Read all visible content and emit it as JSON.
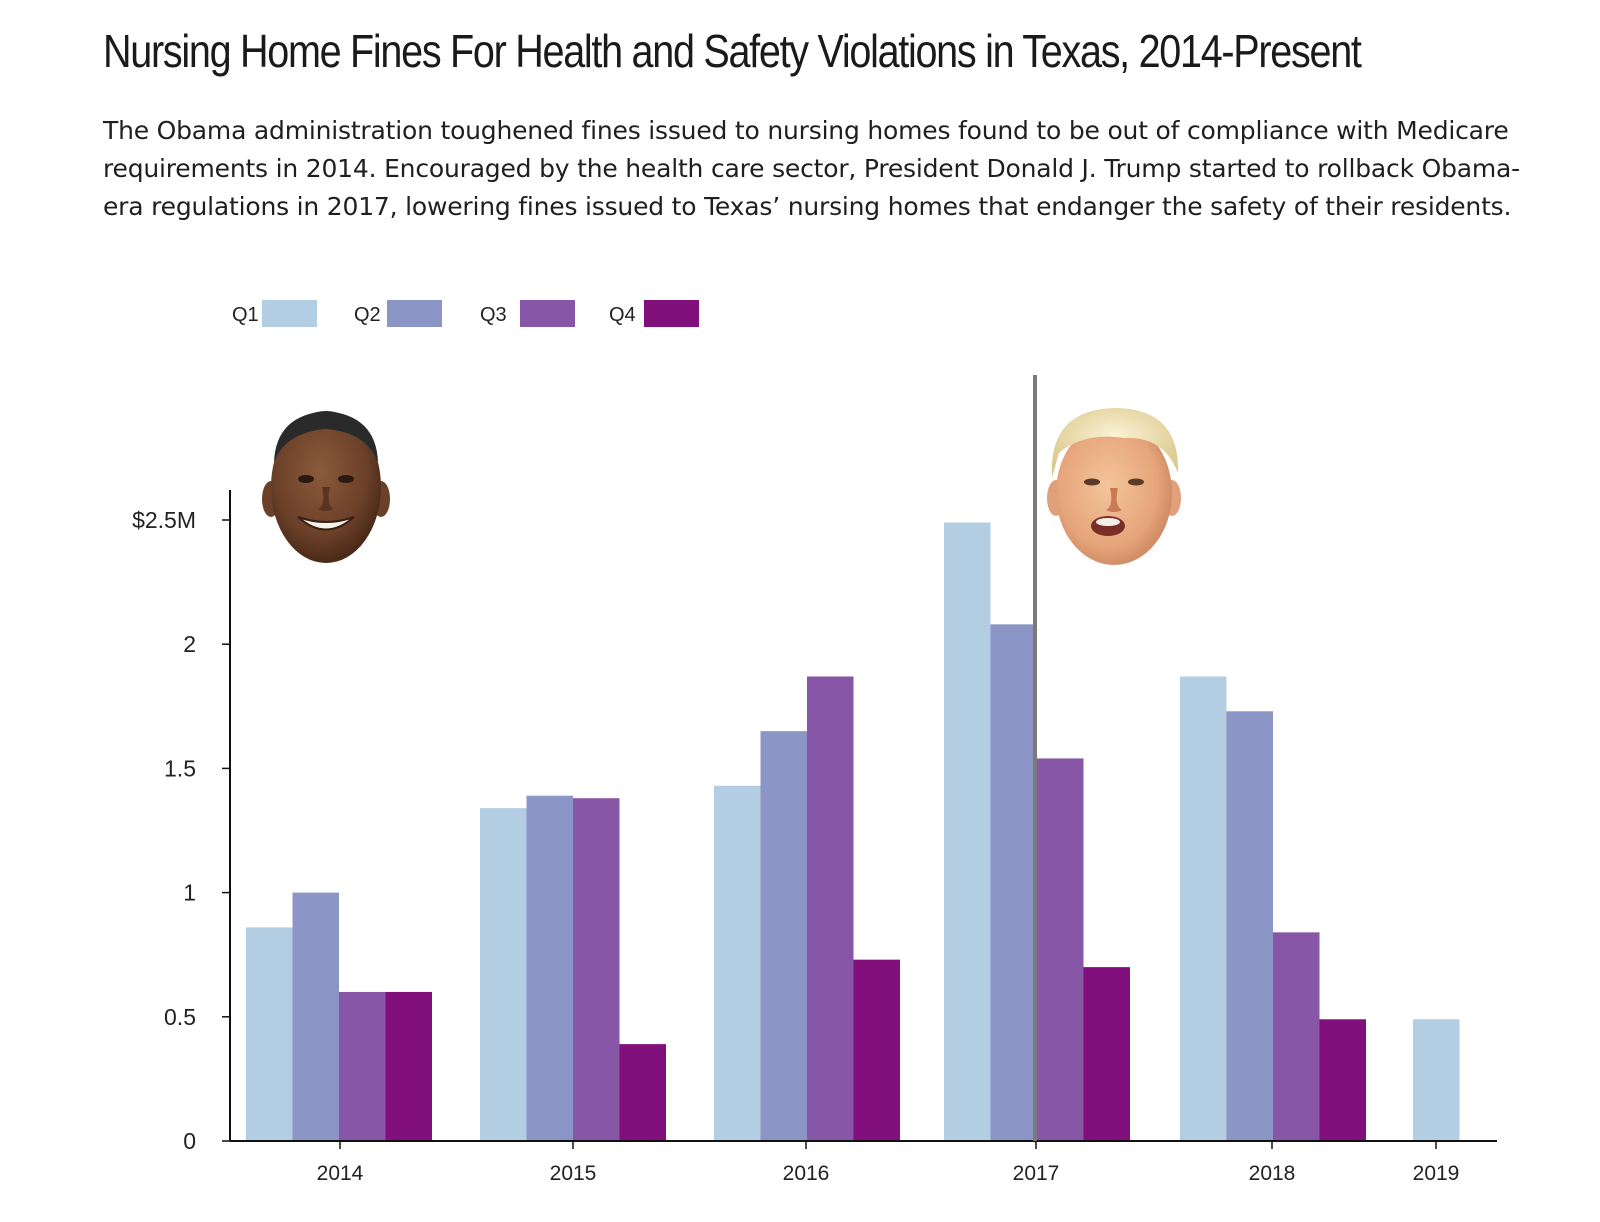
{
  "title": "Nursing Home Fines For Health and Safety Violations in Texas, 2014-Present",
  "subtitle": "The Obama administration toughened fines issued to nursing homes found to be out of compliance with Medicare requirements in 2014. Encouraged by the health care sector, President Donald J. Trump started to rollback Obama-era regulations in 2017, lowering fines issued to Texas’ nursing homes that endanger the safety of their residents.",
  "chart_data": {
    "type": "bar",
    "categories": [
      "2014",
      "2015",
      "2016",
      "2017",
      "2018",
      "2019"
    ],
    "series": [
      {
        "name": "Q1",
        "color": "#b3cde3",
        "values": [
          0.86,
          1.34,
          1.43,
          2.49,
          1.87,
          0.49
        ]
      },
      {
        "name": "Q2",
        "color": "#8c96c6",
        "values": [
          1.0,
          1.39,
          1.65,
          2.08,
          1.73,
          null
        ]
      },
      {
        "name": "Q3",
        "color": "#8856a7",
        "values": [
          0.6,
          1.38,
          1.87,
          1.54,
          0.84,
          null
        ]
      },
      {
        "name": "Q4",
        "color": "#810f7c",
        "values": [
          0.6,
          0.39,
          0.73,
          0.7,
          0.49,
          null
        ]
      }
    ],
    "yticks": [
      {
        "value": 0,
        "label": "0"
      },
      {
        "value": 0.5,
        "label": "0.5"
      },
      {
        "value": 1,
        "label": "1"
      },
      {
        "value": 1.5,
        "label": "1.5"
      },
      {
        "value": 2,
        "label": "2"
      },
      {
        "value": 2.5,
        "label": "$2.5M"
      }
    ],
    "ylim": [
      0,
      2.5
    ],
    "xlabel": "",
    "ylabel": "",
    "legend_position": "top-left",
    "grid": false,
    "annotations": [
      {
        "type": "vertical-line",
        "x": "2017 Q2/Q3 boundary",
        "color": "#7a7a7a"
      },
      {
        "type": "portrait",
        "label": "obama-portrait",
        "position": "left of chart"
      },
      {
        "type": "portrait",
        "label": "trump-portrait",
        "position": "right of divider"
      }
    ]
  }
}
